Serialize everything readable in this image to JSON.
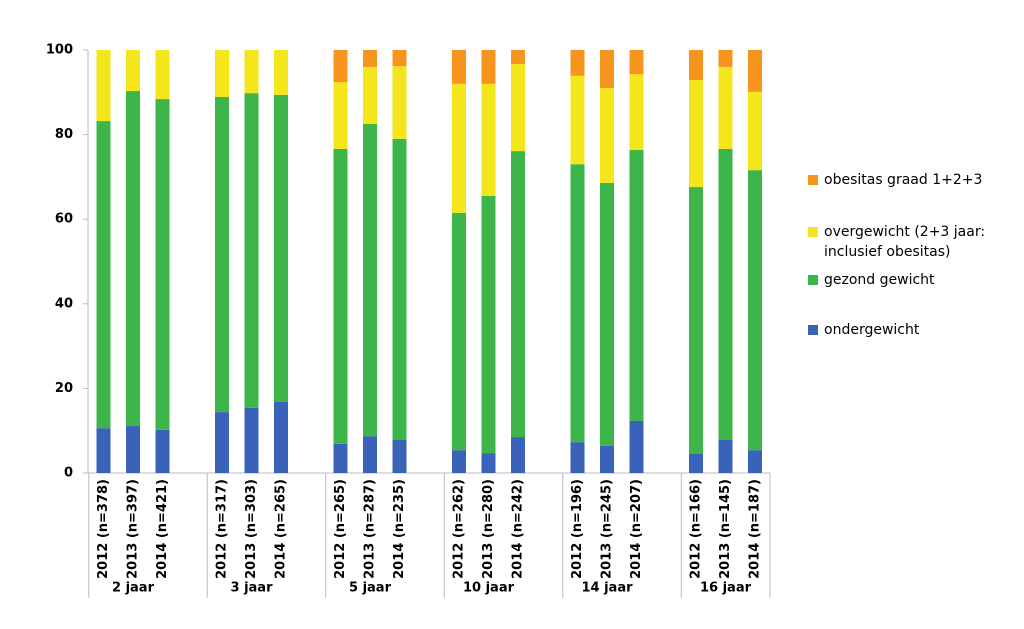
{
  "chart_data": {
    "type": "stacked-bar",
    "categories": [
      "2012 (n=378)",
      "2013 (n=397)",
      "2014 (n=421)",
      "2012 (n=317)",
      "2013 (n=303)",
      "2014 (n=265)",
      "2012 (n=265)",
      "2013 (n=287)",
      "2014 (n=235)",
      "2012 (n=262)",
      "2013 (n=280)",
      "2014 (n=242)",
      "2012 (n=196)",
      "2013 (n=245)",
      "2014 (n=207)",
      "2012 (n=166)",
      "2013 (n=145)",
      "2014 (n=187)"
    ],
    "groups": [
      "2 jaar",
      "3 jaar",
      "5 jaar",
      "10 jaar",
      "14 jaar",
      "16 jaar"
    ],
    "series": [
      {
        "name": "ondergewicht",
        "color": "#3a62b8",
        "values": [
          10.6,
          11.1,
          10.2,
          14.4,
          15.4,
          16.8,
          6.9,
          8.7,
          7.8,
          5.4,
          4.7,
          8.5,
          7.3,
          6.4,
          12.3,
          4.5,
          7.8,
          5.4
        ]
      },
      {
        "name": "gezond gewicht",
        "color": "#3cb54a",
        "values": [
          72.6,
          79.2,
          78.2,
          74.5,
          74.4,
          72.6,
          69.7,
          73.8,
          71.2,
          56.1,
          60.8,
          67.6,
          65.7,
          62.2,
          64.1,
          63.1,
          68.8,
          66.2
        ]
      },
      {
        "name": "overgewicht (2+3 jaar: inclusief obesitas)",
        "color": "#f5e51b",
        "values": [
          16.8,
          9.7,
          11.6,
          11.1,
          10.2,
          10.6,
          15.8,
          13.5,
          17.2,
          30.5,
          26.5,
          20.6,
          20.9,
          22.4,
          17.9,
          25.3,
          19.4,
          18.5
        ]
      },
      {
        "name": "obesitas graad 1+2+3",
        "color": "#f7941d",
        "values": [
          0,
          0,
          0,
          0,
          0,
          0,
          7.6,
          4,
          3.8,
          8,
          8,
          3.3,
          6.1,
          9,
          5.7,
          7.1,
          4,
          9.9
        ]
      }
    ],
    "ylim": [
      0,
      100
    ],
    "yticks": [
      0,
      20,
      40,
      60,
      80,
      100
    ],
    "grid": false
  }
}
